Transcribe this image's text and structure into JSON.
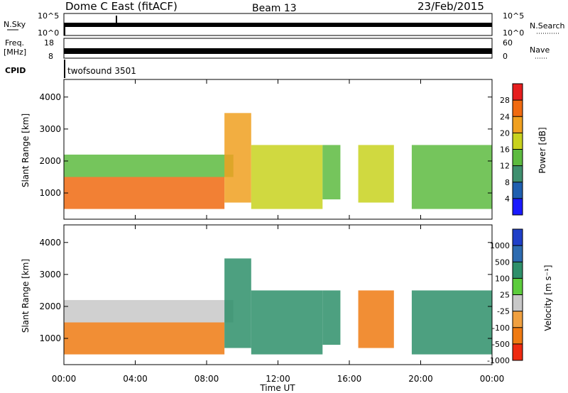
{
  "header": {
    "title": "Dome C East (fitACF)",
    "beam": "Beam 13",
    "date": "23/Feb/2015"
  },
  "strips": {
    "nsky": {
      "label": "N.Sky",
      "top_tick": "10^5",
      "bottom_tick": "10^0"
    },
    "nsearch": {
      "label": "N.Search",
      "top_tick": "10^5",
      "bottom_tick": "10^0"
    },
    "freq": {
      "label_line1": "Freq.",
      "label_line2": "[MHz]",
      "top_tick": "18",
      "bottom_tick": "8"
    },
    "nave": {
      "label": "Nave",
      "top_tick": "60",
      "bottom_tick": "0"
    },
    "cpid": {
      "label": "CPID",
      "value": "twofsound 3501"
    }
  },
  "colors": {
    "power_scale": [
      "#1a1aff",
      "#1f5fb0",
      "#3f8f6f",
      "#5dbb3f",
      "#c8d21e",
      "#f0a020",
      "#f06a10",
      "#e61e1e"
    ],
    "velocity_scale": [
      "#1f3fc8",
      "#2d6bb0",
      "#2e8f6a",
      "#5ccc3c",
      "#c8c8c8",
      "#f0a040",
      "#ef7a12",
      "#ee2a10"
    ]
  },
  "chart_data": [
    {
      "type": "heatmap",
      "name": "power",
      "xlabel": "Time UT",
      "ylabel": "Slant Range [km]",
      "xlim": [
        0,
        24
      ],
      "ylim": [
        180,
        4550
      ],
      "x_ticks": [
        "00:00",
        "04:00",
        "08:00",
        "12:00",
        "16:00",
        "20:00",
        "00:00"
      ],
      "y_ticks": [
        "1000",
        "2000",
        "3000",
        "4000"
      ],
      "colorbar": {
        "label": "Power [dB]",
        "ticks": [
          "4",
          "8",
          "12",
          "16",
          "20",
          "24",
          "28"
        ]
      },
      "echo_regions": [
        {
          "t0": 0.0,
          "t1": 9.0,
          "r0": 500,
          "r1": 1500,
          "value": 26
        },
        {
          "t0": 0.0,
          "t1": 9.5,
          "r0": 1500,
          "r1": 2200,
          "value": 14
        },
        {
          "t0": 9.0,
          "t1": 10.5,
          "r0": 700,
          "r1": 3500,
          "value": 22
        },
        {
          "t0": 10.5,
          "t1": 14.5,
          "r0": 500,
          "r1": 2500,
          "value": 18
        },
        {
          "t0": 14.5,
          "t1": 15.5,
          "r0": 800,
          "r1": 2500,
          "value": 12
        },
        {
          "t0": 16.5,
          "t1": 18.5,
          "r0": 700,
          "r1": 2500,
          "value": 18
        },
        {
          "t0": 19.5,
          "t1": 24.0,
          "r0": 500,
          "r1": 2500,
          "value": 14
        }
      ]
    },
    {
      "type": "heatmap",
      "name": "velocity",
      "xlabel": "Time UT",
      "ylabel": "Slant Range [km]",
      "xlim": [
        0,
        24
      ],
      "ylim": [
        180,
        4550
      ],
      "x_ticks": [
        "00:00",
        "04:00",
        "08:00",
        "12:00",
        "16:00",
        "20:00",
        "00:00"
      ],
      "y_ticks": [
        "1000",
        "2000",
        "3000",
        "4000"
      ],
      "colorbar": {
        "label": "Velocity [m s⁻¹]",
        "ticks": [
          "1000",
          "500",
          "100",
          "25",
          "-25",
          "-100",
          "-500",
          "-1000"
        ]
      },
      "echo_regions": [
        {
          "t0": 0.0,
          "t1": 9.0,
          "r0": 500,
          "r1": 1500,
          "value": -300
        },
        {
          "t0": 0.0,
          "t1": 9.5,
          "r0": 1500,
          "r1": 2200,
          "value": 0
        },
        {
          "t0": 9.0,
          "t1": 10.5,
          "r0": 700,
          "r1": 3500,
          "value": 150
        },
        {
          "t0": 10.5,
          "t1": 14.5,
          "r0": 500,
          "r1": 2500,
          "value": 200
        },
        {
          "t0": 14.5,
          "t1": 15.5,
          "r0": 800,
          "r1": 2500,
          "value": 300
        },
        {
          "t0": 16.5,
          "t1": 18.5,
          "r0": 700,
          "r1": 2500,
          "value": -400
        },
        {
          "t0": 19.5,
          "t1": 24.0,
          "r0": 500,
          "r1": 2500,
          "value": 150
        }
      ]
    }
  ]
}
